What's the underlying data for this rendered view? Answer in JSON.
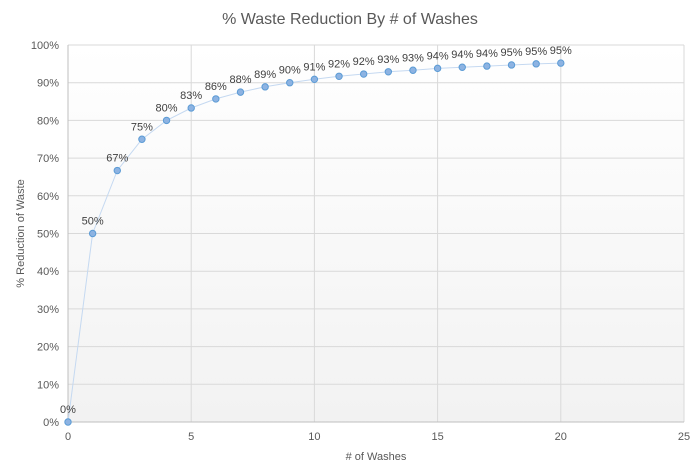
{
  "chart_data": {
    "type": "scatter",
    "title": "% Waste Reduction By # of Washes",
    "xlabel": "# of Washes",
    "ylabel": "% Reduction of Waste",
    "xlim": [
      0,
      25
    ],
    "ylim": [
      0,
      100
    ],
    "x_ticks": [
      0,
      5,
      10,
      15,
      20,
      25
    ],
    "y_ticks": [
      0,
      10,
      20,
      30,
      40,
      50,
      60,
      70,
      80,
      90,
      100
    ],
    "y_tick_labels": [
      "0%",
      "10%",
      "20%",
      "30%",
      "40%",
      "50%",
      "60%",
      "70%",
      "80%",
      "90%",
      "100%"
    ],
    "grid": true,
    "legend": "none",
    "series": [
      {
        "x": [
          0,
          1,
          2,
          3,
          4,
          5,
          6,
          7,
          8,
          9,
          10,
          11,
          12,
          13,
          14,
          15,
          16,
          17,
          18,
          19,
          20
        ],
        "y": [
          0,
          50,
          66.7,
          75,
          80,
          83.3,
          85.7,
          87.5,
          88.9,
          90,
          90.9,
          91.7,
          92.3,
          92.9,
          93.3,
          93.8,
          94.1,
          94.4,
          94.7,
          95,
          95.2
        ],
        "data_labels": [
          "0%",
          "50%",
          "67%",
          "75%",
          "80%",
          "83%",
          "86%",
          "88%",
          "89%",
          "90%",
          "91%",
          "92%",
          "92%",
          "93%",
          "93%",
          "94%",
          "94%",
          "94%",
          "95%",
          "95%",
          "95%"
        ]
      }
    ],
    "colors": {
      "marker_fill": "#8db3e2",
      "marker_stroke": "#5b9bd5",
      "line": "#c5d9f1",
      "plot_bg_top": "#ffffff",
      "plot_bg_bottom": "#f2f2f2"
    }
  }
}
